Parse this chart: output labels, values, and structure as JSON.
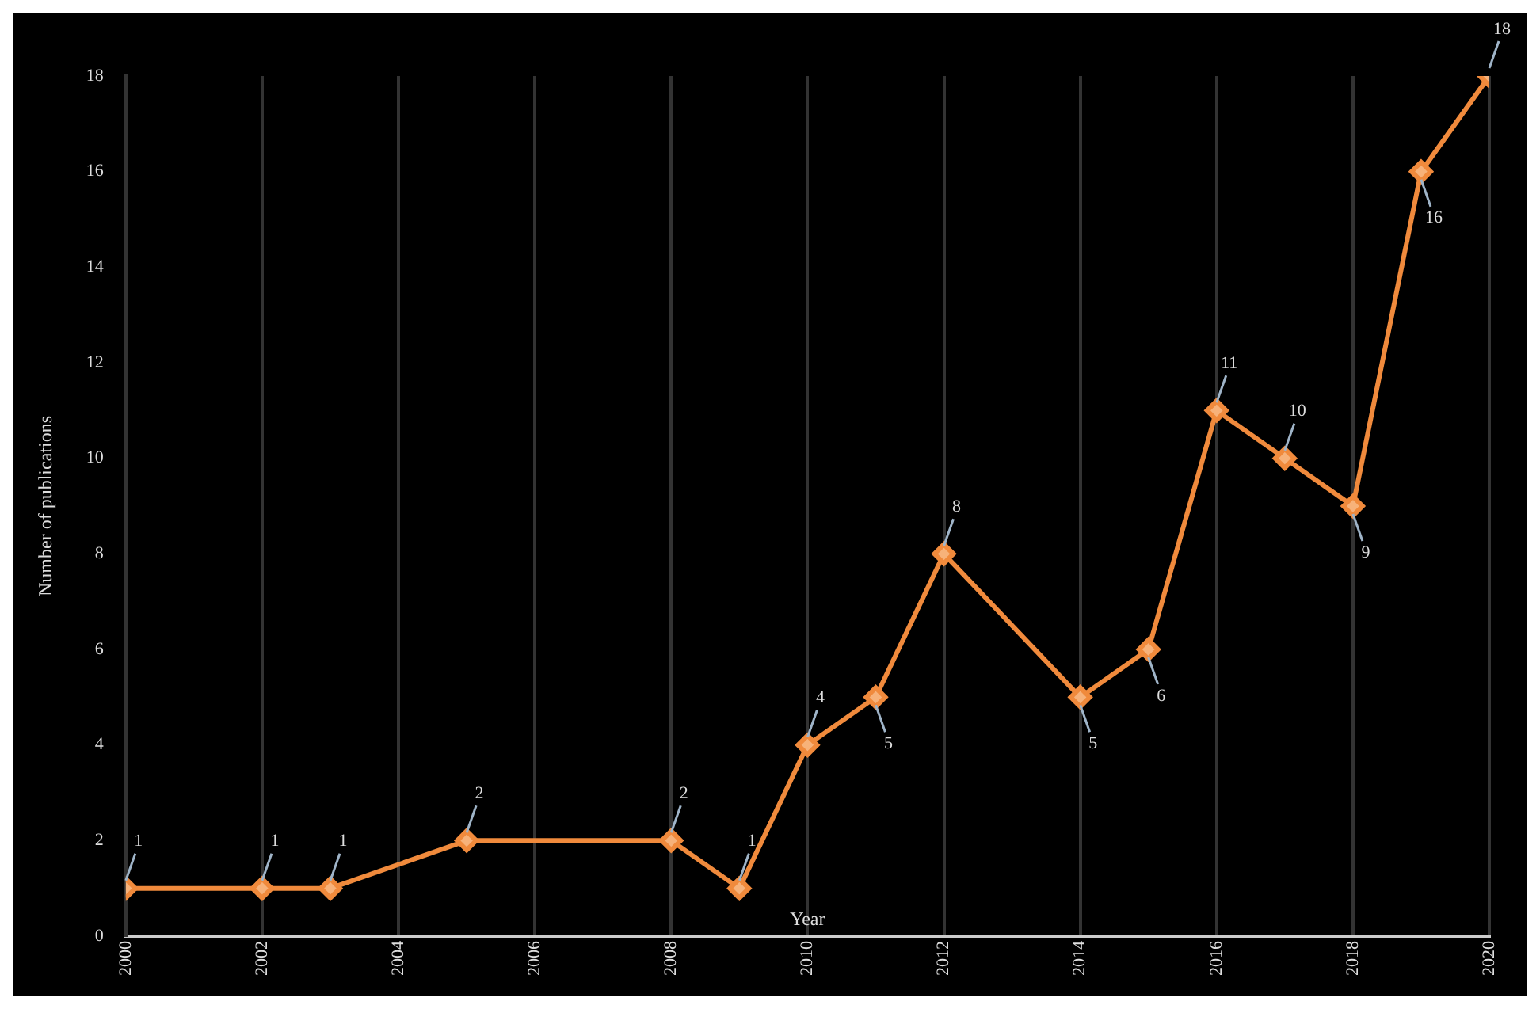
{
  "chart_data": {
    "type": "line",
    "xlabel": "Year",
    "ylabel": "Number of publications",
    "x": [
      2000,
      2002,
      2003,
      2005,
      2008,
      2009,
      2010,
      2011,
      2012,
      2014,
      2015,
      2016,
      2017,
      2018,
      2019,
      2020
    ],
    "series": [
      {
        "color": "#f08a3c",
        "values": [
          1,
          1,
          1,
          2,
          2,
          1,
          4,
          5,
          8,
          5,
          6,
          11,
          10,
          9,
          16,
          18
        ],
        "value_labels": [
          "1",
          "1",
          "1",
          "2",
          "2",
          "1",
          "4",
          "5",
          "8",
          "5",
          "6",
          "11",
          "10",
          "9",
          "16",
          "18"
        ]
      }
    ],
    "xlim": [
      2000,
      2020
    ],
    "xticks": [
      2000,
      2002,
      2004,
      2006,
      2008,
      2010,
      2012,
      2014,
      2016,
      2018,
      2020
    ],
    "ylim": [
      0,
      18
    ],
    "yticks": [
      0,
      2,
      4,
      6,
      8,
      10,
      12,
      14,
      16,
      18
    ],
    "grid": "x",
    "marker": "diamond",
    "line_style": "solid",
    "legend": false
  }
}
